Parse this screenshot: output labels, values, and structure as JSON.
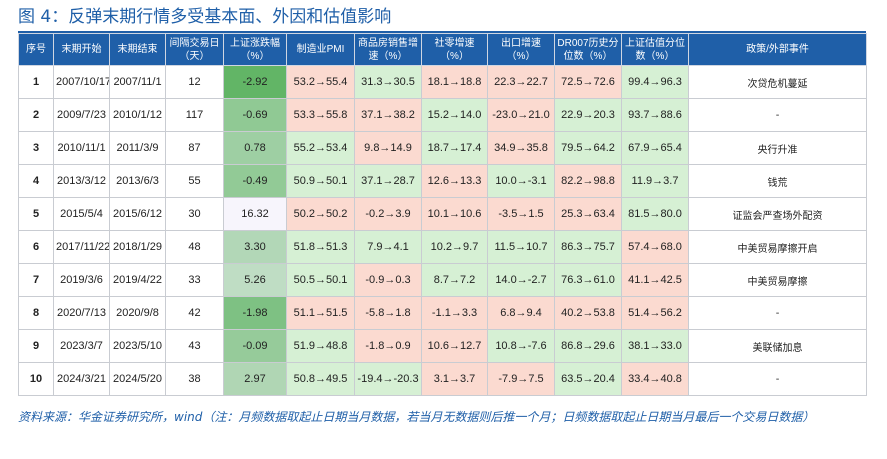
{
  "title": "图 4：反弹末期行情多受基本面、外因和估值影响",
  "source_note": "资料来源：华金证券研究所，wind（注：月频数据取起止日期当月数据，若当月无数据则后推一个月；日频数据取起止日期当月最后一个交易日数据）",
  "colors": {
    "header_bg": "#1f5fa8",
    "green": "#d6f0d4",
    "red": "#fbdad0",
    "change_scale_min": "#62b566",
    "change_scale_max": "#f7f5fc"
  },
  "columns": [
    "序号",
    "末期开始",
    "末期结束",
    "间隔交易日（天）",
    "上证涨跌幅（%）",
    "制造业PMI",
    "商品房销售增速（%）",
    "社零增速（%）",
    "出口增速（%）",
    "DR007历史分位数（%）",
    "上证估值分位数（%）",
    "政策/外部事件"
  ],
  "rows": [
    {
      "no": "1",
      "start": "2007/10/17",
      "end": "2007/11/1",
      "days": "12",
      "change": "-2.92",
      "pmi": "53.2→55.4",
      "house": "31.3→30.5",
      "retail": "18.1→18.8",
      "export": "22.3→22.7",
      "dr007": "72.5→72.6",
      "pe": "99.4→96.3",
      "event": "次贷危机蔓延"
    },
    {
      "no": "2",
      "start": "2009/7/23",
      "end": "2010/1/12",
      "days": "117",
      "change": "-0.69",
      "pmi": "53.3→55.8",
      "house": "37.1→38.2",
      "retail": "15.2→14.0",
      "export": "-23.0→21.0",
      "dr007": "22.9→20.3",
      "pe": "93.7→88.6",
      "event": "-"
    },
    {
      "no": "3",
      "start": "2010/11/1",
      "end": "2011/3/9",
      "days": "87",
      "change": "0.78",
      "pmi": "55.2→53.4",
      "house": "9.8→14.9",
      "retail": "18.7→17.4",
      "export": "34.9→35.8",
      "dr007": "79.5→64.2",
      "pe": "67.9→65.4",
      "event": "央行升准"
    },
    {
      "no": "4",
      "start": "2013/3/12",
      "end": "2013/6/3",
      "days": "55",
      "change": "-0.49",
      "pmi": "50.9→50.1",
      "house": "37.1→28.7",
      "retail": "12.6→13.3",
      "export": "10.0→-3.1",
      "dr007": "82.2→98.8",
      "pe": "11.9→3.7",
      "event": "钱荒"
    },
    {
      "no": "5",
      "start": "2015/5/4",
      "end": "2015/6/12",
      "days": "30",
      "change": "16.32",
      "pmi": "50.2→50.2",
      "house": "-0.2→3.9",
      "retail": "10.1→10.6",
      "export": "-3.5→1.5",
      "dr007": "25.3→63.4",
      "pe": "81.5→80.0",
      "event": "证监会严查场外配资"
    },
    {
      "no": "6",
      "start": "2017/11/22",
      "end": "2018/1/29",
      "days": "48",
      "change": "3.30",
      "pmi": "51.8→51.3",
      "house": "7.9→4.1",
      "retail": "10.2→9.7",
      "export": "11.5→10.7",
      "dr007": "86.3→75.7",
      "pe": "57.4→68.0",
      "event": "中美贸易摩擦开启"
    },
    {
      "no": "7",
      "start": "2019/3/6",
      "end": "2019/4/22",
      "days": "33",
      "change": "5.26",
      "pmi": "50.5→50.1",
      "house": "-0.9→0.3",
      "retail": "8.7→7.2",
      "export": "14.0→-2.7",
      "dr007": "76.3→61.0",
      "pe": "41.1→42.5",
      "event": "中美贸易摩擦"
    },
    {
      "no": "8",
      "start": "2020/7/13",
      "end": "2020/9/8",
      "days": "42",
      "change": "-1.98",
      "pmi": "51.1→51.5",
      "house": "-5.8→1.8",
      "retail": "-1.1→3.3",
      "export": "6.8→9.4",
      "dr007": "40.2→53.8",
      "pe": "51.4→56.2",
      "event": "-"
    },
    {
      "no": "9",
      "start": "2023/3/7",
      "end": "2023/5/10",
      "days": "43",
      "change": "-0.09",
      "pmi": "51.9→48.8",
      "house": "-1.8→0.9",
      "retail": "10.6→12.7",
      "export": "10.8→-7.6",
      "dr007": "86.8→29.6",
      "pe": "38.1→33.0",
      "event": "美联储加息"
    },
    {
      "no": "10",
      "start": "2024/3/21",
      "end": "2024/5/20",
      "days": "38",
      "change": "2.97",
      "pmi": "50.8→49.5",
      "house": "-19.4→-20.3",
      "retail": "3.1→3.7",
      "export": "-7.9→7.5",
      "dr007": "63.5→20.4",
      "pe": "33.4→40.8",
      "event": "-"
    }
  ]
}
